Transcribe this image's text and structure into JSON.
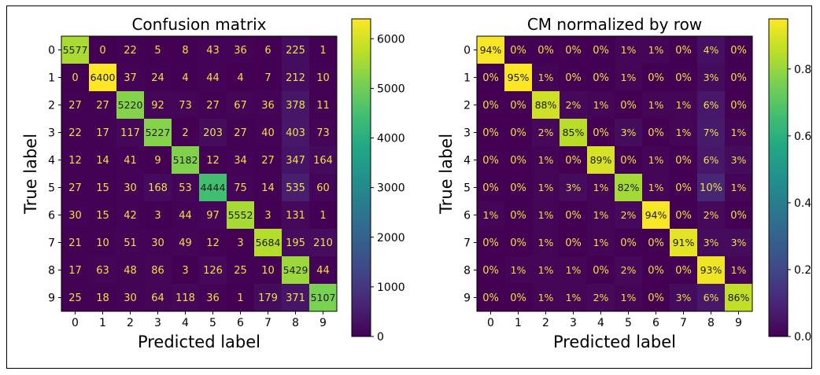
{
  "chart_data": [
    {
      "type": "heatmap",
      "title": "Confusion matrix",
      "xlabel": "Predicted label",
      "ylabel": "True label",
      "x_tick_labels": [
        "0",
        "1",
        "2",
        "3",
        "4",
        "5",
        "6",
        "7",
        "8",
        "9"
      ],
      "y_tick_labels": [
        "0",
        "1",
        "2",
        "3",
        "4",
        "5",
        "6",
        "7",
        "8",
        "9"
      ],
      "value_format": "int",
      "vmin": 0,
      "vmax": 6400,
      "colorbar_ticks": [
        0,
        1000,
        2000,
        3000,
        4000,
        5000,
        6000
      ],
      "colorbar_tick_labels": [
        "0",
        "1000",
        "2000",
        "3000",
        "4000",
        "5000",
        "6000"
      ],
      "colormap": "viridis",
      "values": [
        [
          5577,
          0,
          22,
          5,
          8,
          43,
          36,
          6,
          225,
          1
        ],
        [
          0,
          6400,
          37,
          24,
          4,
          44,
          4,
          7,
          212,
          10
        ],
        [
          27,
          27,
          5220,
          92,
          73,
          27,
          67,
          36,
          378,
          11
        ],
        [
          22,
          17,
          117,
          5227,
          2,
          203,
          27,
          40,
          403,
          73
        ],
        [
          12,
          14,
          41,
          9,
          5182,
          12,
          34,
          27,
          347,
          164
        ],
        [
          27,
          15,
          30,
          168,
          53,
          4444,
          75,
          14,
          535,
          60
        ],
        [
          30,
          15,
          42,
          3,
          44,
          97,
          5552,
          3,
          131,
          1
        ],
        [
          21,
          10,
          51,
          30,
          49,
          12,
          3,
          5684,
          195,
          210
        ],
        [
          17,
          63,
          48,
          86,
          3,
          126,
          25,
          10,
          5429,
          44
        ],
        [
          25,
          18,
          30,
          64,
          118,
          36,
          1,
          179,
          371,
          5107
        ]
      ]
    },
    {
      "type": "heatmap",
      "title": "CM normalized by row",
      "xlabel": "Predicted label",
      "ylabel": "True label",
      "x_tick_labels": [
        "0",
        "1",
        "2",
        "3",
        "4",
        "5",
        "6",
        "7",
        "8",
        "9"
      ],
      "y_tick_labels": [
        "0",
        "1",
        "2",
        "3",
        "4",
        "5",
        "6",
        "7",
        "8",
        "9"
      ],
      "value_format": "percent",
      "vmin": 0,
      "vmax": 0.95,
      "colorbar_ticks": [
        0,
        0.2,
        0.4,
        0.6,
        0.8
      ],
      "colorbar_tick_labels": [
        "0.0",
        "0.2",
        "0.4",
        "0.6",
        "0.8"
      ],
      "colormap": "viridis",
      "values": [
        [
          0.94,
          0.0,
          0.0,
          0.0,
          0.0,
          0.01,
          0.01,
          0.0,
          0.04,
          0.0
        ],
        [
          0.0,
          0.95,
          0.01,
          0.0,
          0.0,
          0.01,
          0.0,
          0.0,
          0.03,
          0.0
        ],
        [
          0.0,
          0.0,
          0.88,
          0.02,
          0.01,
          0.0,
          0.01,
          0.01,
          0.06,
          0.0
        ],
        [
          0.0,
          0.0,
          0.02,
          0.85,
          0.0,
          0.03,
          0.0,
          0.01,
          0.07,
          0.01
        ],
        [
          0.0,
          0.0,
          0.01,
          0.0,
          0.89,
          0.0,
          0.01,
          0.0,
          0.06,
          0.03
        ],
        [
          0.0,
          0.0,
          0.01,
          0.03,
          0.01,
          0.82,
          0.01,
          0.0,
          0.1,
          0.01
        ],
        [
          0.01,
          0.0,
          0.01,
          0.0,
          0.01,
          0.02,
          0.94,
          0.0,
          0.02,
          0.0
        ],
        [
          0.0,
          0.0,
          0.01,
          0.0,
          0.01,
          0.0,
          0.0,
          0.91,
          0.03,
          0.03
        ],
        [
          0.0,
          0.01,
          0.01,
          0.01,
          0.0,
          0.02,
          0.0,
          0.0,
          0.93,
          0.01
        ],
        [
          0.0,
          0.0,
          0.01,
          0.01,
          0.02,
          0.01,
          0.0,
          0.03,
          0.06,
          0.86
        ]
      ]
    }
  ]
}
